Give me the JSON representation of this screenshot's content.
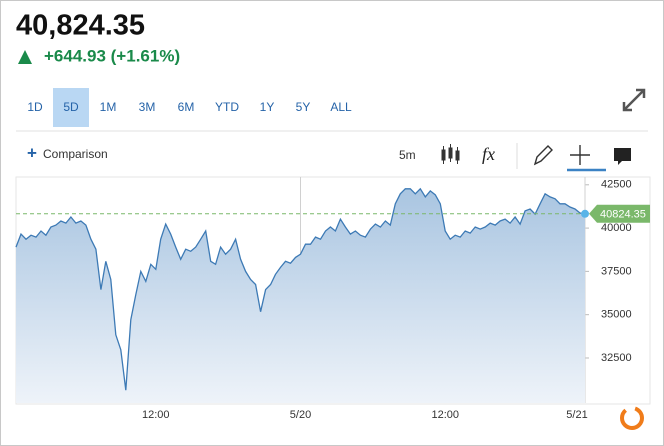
{
  "header": {
    "price": "40,824.35",
    "change": "+644.93 (+1.61%)"
  },
  "ranges": [
    "1D",
    "5D",
    "1M",
    "3M",
    "6M",
    "YTD",
    "1Y",
    "5Y",
    "ALL"
  ],
  "active_range": "5D",
  "toolbar": {
    "comparison": "Comparison",
    "interval": "5m",
    "fx": "fx"
  },
  "chart_data": {
    "type": "area",
    "categories": [
      null,
      null,
      null,
      null,
      null,
      null,
      null,
      null,
      null,
      null,
      null,
      null,
      null,
      null,
      null,
      null,
      null,
      null,
      null,
      null,
      null,
      null,
      null,
      null,
      null,
      null,
      null,
      null,
      "12:00",
      null,
      null,
      null,
      null,
      null,
      null,
      null,
      null,
      null,
      null,
      null,
      null,
      null,
      null,
      null,
      null,
      null,
      null,
      null,
      null,
      null,
      null,
      null,
      null,
      null,
      null,
      null,
      null,
      "5/20",
      null,
      null,
      null,
      null,
      null,
      null,
      null,
      null,
      null,
      null,
      null,
      null,
      null,
      null,
      null,
      null,
      null,
      null,
      null,
      null,
      null,
      null,
      null,
      null,
      null,
      null,
      null,
      null,
      "12:00",
      null,
      null,
      null,
      null,
      null,
      null,
      null,
      null,
      null,
      null,
      null,
      null,
      null,
      null,
      null,
      null,
      null,
      null,
      null,
      null,
      null,
      null,
      null,
      null,
      null,
      null,
      null,
      "5/21"
    ],
    "values": [
      38900,
      39650,
      39360,
      39590,
      39480,
      39830,
      39590,
      40060,
      40170,
      40410,
      40290,
      40640,
      40290,
      40410,
      40170,
      39360,
      38780,
      36450,
      38080,
      37030,
      33840,
      32970,
      30640,
      34710,
      36160,
      37500,
      36920,
      37910,
      37620,
      39360,
      40230,
      39650,
      38900,
      38200,
      38780,
      38660,
      38900,
      39360,
      39830,
      38080,
      37910,
      38900,
      38490,
      38780,
      39360,
      38200,
      37500,
      37030,
      36740,
      35170,
      36450,
      36740,
      37330,
      37730,
      38080,
      37970,
      38310,
      38490,
      39070,
      39070,
      39480,
      39360,
      39830,
      40060,
      39830,
      40520,
      40060,
      39650,
      39830,
      39590,
      39480,
      39940,
      40230,
      40060,
      40410,
      40170,
      41400,
      41980,
      42270,
      42270,
      41980,
      42270,
      41800,
      42150,
      41920,
      41400,
      39830,
      39360,
      39590,
      39480,
      39830,
      39710,
      40060,
      39940,
      40060,
      40290,
      40170,
      40410,
      40520,
      40290,
      40640,
      40230,
      40990,
      41100,
      40810,
      41400,
      41980,
      41800,
      41690,
      41400,
      41400,
      41220,
      41100,
      40870,
      40820
    ],
    "color": "#3d7ab5",
    "ylim": [
      29900,
      42950
    ],
    "yticks": [
      32500,
      35000,
      37500,
      40000,
      42500
    ],
    "last_value": 40824.35,
    "last_color": "#7ab86a"
  }
}
